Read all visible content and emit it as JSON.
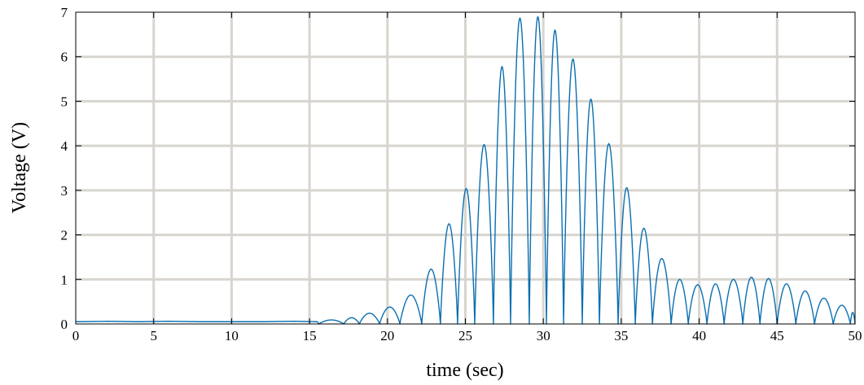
{
  "chart_data": {
    "type": "line",
    "title": "",
    "xlabel": "time (sec)",
    "ylabel": "Voltage (V)",
    "xlim": [
      0,
      50
    ],
    "ylim": [
      0,
      7
    ],
    "xticks": [
      0,
      5,
      10,
      15,
      20,
      25,
      30,
      35,
      40,
      45,
      50
    ],
    "yticks": [
      0,
      1,
      2,
      3,
      4,
      5,
      6,
      7
    ],
    "grid": true,
    "series_color": "#0a6fb0",
    "grid_color": "#d8d5cf",
    "baseline": [
      [
        0,
        0.05
      ],
      [
        2,
        0.06
      ],
      [
        4,
        0.05
      ],
      [
        6,
        0.06
      ],
      [
        8,
        0.05
      ],
      [
        10,
        0.05
      ],
      [
        12,
        0.05
      ],
      [
        14,
        0.06
      ],
      [
        15.5,
        0.05
      ]
    ],
    "arches": [
      {
        "start": 15.6,
        "end": 17.2,
        "peak": 0.09
      },
      {
        "start": 17.2,
        "end": 18.2,
        "peak": 0.14
      },
      {
        "start": 18.2,
        "end": 19.5,
        "peak": 0.24
      },
      {
        "start": 19.5,
        "end": 20.8,
        "peak": 0.38
      },
      {
        "start": 20.8,
        "end": 22.2,
        "peak": 0.65
      },
      {
        "start": 22.2,
        "end": 23.4,
        "peak": 1.23
      },
      {
        "start": 23.4,
        "end": 24.5,
        "peak": 2.25
      },
      {
        "start": 24.5,
        "end": 25.6,
        "peak": 3.04
      },
      {
        "start": 25.6,
        "end": 26.8,
        "peak": 4.03
      },
      {
        "start": 26.8,
        "end": 27.9,
        "peak": 5.78
      },
      {
        "start": 27.9,
        "end": 29.1,
        "peak": 6.87
      },
      {
        "start": 29.1,
        "end": 30.2,
        "peak": 6.9
      },
      {
        "start": 30.2,
        "end": 31.3,
        "peak": 6.6
      },
      {
        "start": 31.3,
        "end": 32.5,
        "peak": 5.95
      },
      {
        "start": 32.5,
        "end": 33.6,
        "peak": 5.05
      },
      {
        "start": 33.6,
        "end": 34.8,
        "peak": 4.05
      },
      {
        "start": 34.8,
        "end": 35.9,
        "peak": 3.06
      },
      {
        "start": 35.9,
        "end": 37.0,
        "peak": 2.15
      },
      {
        "start": 37.0,
        "end": 38.2,
        "peak": 1.47
      },
      {
        "start": 38.2,
        "end": 39.3,
        "peak": 1.0
      },
      {
        "start": 39.3,
        "end": 40.5,
        "peak": 0.88
      },
      {
        "start": 40.5,
        "end": 41.6,
        "peak": 0.9
      },
      {
        "start": 41.6,
        "end": 42.8,
        "peak": 1.0
      },
      {
        "start": 42.8,
        "end": 43.9,
        "peak": 1.05
      },
      {
        "start": 43.9,
        "end": 45.0,
        "peak": 1.02
      },
      {
        "start": 45.0,
        "end": 46.2,
        "peak": 0.9
      },
      {
        "start": 46.2,
        "end": 47.4,
        "peak": 0.74
      },
      {
        "start": 47.4,
        "end": 48.6,
        "peak": 0.58
      },
      {
        "start": 48.6,
        "end": 49.7,
        "peak": 0.42
      },
      {
        "start": 49.7,
        "end": 50.0,
        "peak": 0.26
      }
    ]
  }
}
